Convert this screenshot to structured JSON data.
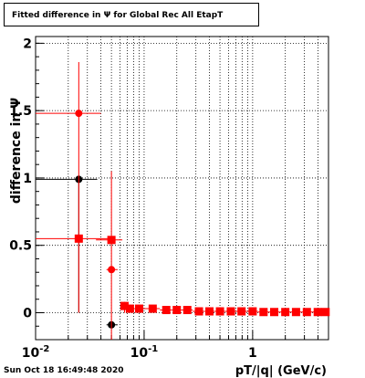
{
  "chart_data": {
    "type": "scatter",
    "title": "Fitted difference in  Ψ  for Global Rec All EtapT",
    "xlabel": "pT/|q| (GeV/c)",
    "ylabel": "difference in  Ψ",
    "x_scale": "log",
    "xlim": [
      0.01,
      5
    ],
    "ylim": [
      -0.2,
      2.05
    ],
    "x_ticks": [
      {
        "value": 0.01,
        "label": "10",
        "exp": "-2"
      },
      {
        "value": 0.1,
        "label": "10",
        "exp": "-1"
      },
      {
        "value": 1,
        "label": "1",
        "exp": ""
      }
    ],
    "y_ticks": [
      {
        "value": 0,
        "label": "0"
      },
      {
        "value": 0.5,
        "label": "0.5"
      },
      {
        "value": 1,
        "label": "1"
      },
      {
        "value": 1.5,
        "label": "1.5"
      },
      {
        "value": 2,
        "label": "2"
      }
    ],
    "grid": true,
    "series": [
      {
        "color": "#000000",
        "marker": "circle",
        "points": [
          {
            "x": 0.025,
            "y": 0.99,
            "xlo": 0.01,
            "xhi": 0.037,
            "ylo": 0.0,
            "yhi": 1.0
          },
          {
            "x": 0.05,
            "y": -0.09,
            "xlo": 0.045,
            "xhi": 0.057,
            "ylo": -0.09,
            "yhi": -0.09
          }
        ]
      },
      {
        "color": "#ff0000",
        "marker": "circle",
        "points": [
          {
            "x": 0.025,
            "y": 1.48,
            "xlo": 0.01,
            "xhi": 0.04,
            "ylo": 0.0,
            "yhi": 1.86
          },
          {
            "x": 0.05,
            "y": 0.32,
            "xlo": 0.045,
            "xhi": 0.057,
            "ylo": -0.2,
            "yhi": 1.05
          }
        ]
      },
      {
        "color": "#ff0000",
        "marker": "square",
        "points": [
          {
            "x": 0.025,
            "y": 0.55,
            "xlo": 0.01,
            "xhi": 0.05,
            "ylo": 0.53,
            "yhi": 0.57
          },
          {
            "x": 0.05,
            "y": 0.54,
            "xlo": 0.036,
            "xhi": 0.063,
            "ylo": 0.52,
            "yhi": 0.56
          },
          {
            "x": 0.066,
            "y": 0.05,
            "xlo": 0.06,
            "xhi": 0.07,
            "ylo": 0.0,
            "yhi": 0.08
          },
          {
            "x": 0.074,
            "y": 0.03,
            "xlo": 0.07,
            "xhi": 0.08,
            "ylo": 0.0,
            "yhi": 0.06
          },
          {
            "x": 0.09,
            "y": 0.03,
            "xlo": 0.08,
            "xhi": 0.1,
            "ylo": 0.01,
            "yhi": 0.05
          },
          {
            "x": 0.12,
            "y": 0.03,
            "xlo": 0.1,
            "xhi": 0.14,
            "ylo": 0.01,
            "yhi": 0.05
          },
          {
            "x": 0.16,
            "y": 0.02,
            "xlo": 0.14,
            "xhi": 0.18,
            "ylo": 0.0,
            "yhi": 0.04
          },
          {
            "x": 0.2,
            "y": 0.02,
            "xlo": 0.18,
            "xhi": 0.22,
            "ylo": 0.0,
            "yhi": 0.04
          },
          {
            "x": 0.25,
            "y": 0.02,
            "xlo": 0.22,
            "xhi": 0.28,
            "ylo": 0.0,
            "yhi": 0.03
          },
          {
            "x": 0.32,
            "y": 0.01,
            "xlo": 0.28,
            "xhi": 0.36,
            "ylo": 0.0,
            "yhi": 0.03
          },
          {
            "x": 0.4,
            "y": 0.01,
            "xlo": 0.36,
            "xhi": 0.45,
            "ylo": 0.0,
            "yhi": 0.02
          },
          {
            "x": 0.5,
            "y": 0.01,
            "xlo": 0.45,
            "xhi": 0.56,
            "ylo": 0.0,
            "yhi": 0.02
          },
          {
            "x": 0.63,
            "y": 0.01,
            "xlo": 0.56,
            "xhi": 0.7,
            "ylo": 0.0,
            "yhi": 0.02
          },
          {
            "x": 0.79,
            "y": 0.01,
            "xlo": 0.7,
            "xhi": 0.89,
            "ylo": 0.0,
            "yhi": 0.02
          },
          {
            "x": 1.0,
            "y": 0.01,
            "xlo": 0.89,
            "xhi": 1.12,
            "ylo": 0.0,
            "yhi": 0.02
          },
          {
            "x": 1.26,
            "y": 0.005,
            "xlo": 1.12,
            "xhi": 1.41,
            "ylo": 0.0,
            "yhi": 0.01
          },
          {
            "x": 1.58,
            "y": 0.005,
            "xlo": 1.41,
            "xhi": 1.78,
            "ylo": 0.0,
            "yhi": 0.01
          },
          {
            "x": 2.0,
            "y": 0.005,
            "xlo": 1.78,
            "xhi": 2.24,
            "ylo": 0.0,
            "yhi": 0.01
          },
          {
            "x": 2.51,
            "y": 0.005,
            "xlo": 2.24,
            "xhi": 2.82,
            "ylo": 0.0,
            "yhi": 0.01
          },
          {
            "x": 3.16,
            "y": 0.005,
            "xlo": 2.82,
            "xhi": 3.55,
            "ylo": 0.0,
            "yhi": 0.01
          },
          {
            "x": 3.98,
            "y": 0.005,
            "xlo": 3.55,
            "xhi": 4.47,
            "ylo": 0.0,
            "yhi": 0.01
          },
          {
            "x": 4.7,
            "y": 0.005,
            "xlo": 4.47,
            "xhi": 5.0,
            "ylo": 0.0,
            "yhi": 0.01
          }
        ]
      }
    ]
  },
  "footer": {
    "timestamp": "Sun Oct 18 16:49:48 2020"
  }
}
